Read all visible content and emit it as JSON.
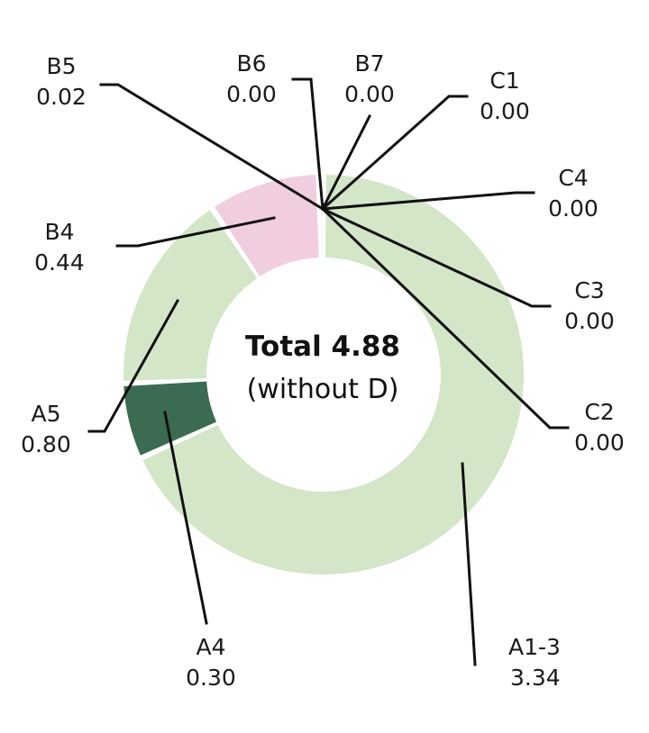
{
  "chart_data": {
    "type": "pie",
    "donut": true,
    "center_title": "Total 4.88",
    "center_subtitle": "(without D)",
    "total": 4.88,
    "slices": [
      {
        "label": "A1-3",
        "value_text": "3.34",
        "value": 3.34,
        "color": "#d4e6c8"
      },
      {
        "label": "A4",
        "value_text": "0.30",
        "value": 0.3,
        "color": "#3b6b50"
      },
      {
        "label": "A5",
        "value_text": "0.80",
        "value": 0.8,
        "color": "#d4e6c8"
      },
      {
        "label": "B4",
        "value_text": "0.44",
        "value": 0.44,
        "color": "#f1cde0"
      },
      {
        "label": "B5",
        "value_text": "0.02",
        "value": 0.02,
        "color": "#f1cde0"
      },
      {
        "label": "B6",
        "value_text": "0.00",
        "value": 0.0,
        "color": "#f1cde0"
      },
      {
        "label": "B7",
        "value_text": "0.00",
        "value": 0.0,
        "color": "#f1cde0"
      },
      {
        "label": "C1",
        "value_text": "0.00",
        "value": 0.0,
        "color": "#d4e6c8"
      },
      {
        "label": "C4",
        "value_text": "0.00",
        "value": 0.0,
        "color": "#d4e6c8"
      },
      {
        "label": "C3",
        "value_text": "0.00",
        "value": 0.0,
        "color": "#d4e6c8"
      },
      {
        "label": "C2",
        "value_text": "0.00",
        "value": 0.0,
        "color": "#d4e6c8"
      }
    ]
  }
}
